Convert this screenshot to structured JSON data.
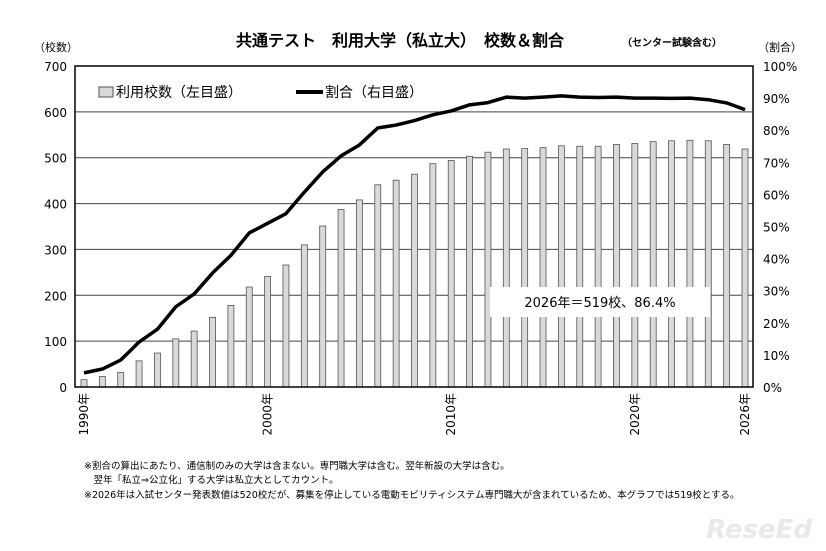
{
  "chart_data": {
    "type": "bar+line",
    "title": "共通テスト　利用大学（私立大）　校数＆割合",
    "subtitle": "（センター試験含む）",
    "ylabel_left": "（校数）",
    "ylabel_right": "（割合）",
    "ylim_left": [
      0,
      700
    ],
    "ylim_right": [
      0,
      100
    ],
    "yticks_left": [
      "0",
      "100",
      "200",
      "300",
      "400",
      "500",
      "600",
      "700"
    ],
    "yticks_right": [
      "0%",
      "10%",
      "20%",
      "30%",
      "40%",
      "50%",
      "60%",
      "70%",
      "80%",
      "90%",
      "100%"
    ],
    "xticks": [
      "1990年",
      "2000年",
      "2010年",
      "2020年",
      "2026年"
    ],
    "grid": true,
    "legend_placement": "top-left",
    "x": [
      1990,
      1991,
      1992,
      1993,
      1994,
      1995,
      1996,
      1997,
      1998,
      1999,
      2000,
      2001,
      2002,
      2003,
      2004,
      2005,
      2006,
      2007,
      2008,
      2009,
      2010,
      2011,
      2012,
      2013,
      2014,
      2015,
      2016,
      2017,
      2018,
      2019,
      2020,
      2021,
      2022,
      2023,
      2024,
      2025,
      2026
    ],
    "series": [
      {
        "name": "利用校数（左目盛）",
        "type": "bar",
        "axis": "left",
        "color": "#d9d9d9",
        "values": [
          16,
          23,
          32,
          57,
          74,
          105,
          122,
          152,
          178,
          218,
          241,
          266,
          310,
          351,
          387,
          408,
          441,
          451,
          464,
          487,
          494,
          503,
          512,
          519,
          520,
          522,
          526,
          525,
          525,
          529,
          531,
          535,
          537,
          538,
          537,
          529,
          519
        ]
      },
      {
        "name": "割合（右目盛）",
        "type": "line",
        "axis": "right",
        "color": "#000000",
        "values": [
          4.4,
          5.6,
          8.4,
          14,
          18,
          25,
          29,
          35.5,
          41,
          48,
          51,
          54,
          60.7,
          67,
          72,
          75.4,
          80.7,
          81.6,
          83,
          84.8,
          86,
          87.9,
          88.6,
          90.3,
          90,
          90.3,
          90.7,
          90.3,
          90.2,
          90.3,
          90,
          90,
          89.9,
          90,
          89.5,
          88.5,
          86.4
        ]
      }
    ],
    "annotation": "2026年＝519校、86.4%"
  },
  "notes": [
    "※割合の算出にあたり、通信制のみの大学は含まない。専門職大学は含む。翌年新設の大学は含む。",
    "　翌年「私立⇒公立化」する大学は私立大としてカウント。",
    "※2026年は入試センター発表数値は520校だが、募集を停止している電動モビリティシステム専門職大が含まれているため、本グラフでは519校とする。"
  ],
  "logo": "ReseEd"
}
